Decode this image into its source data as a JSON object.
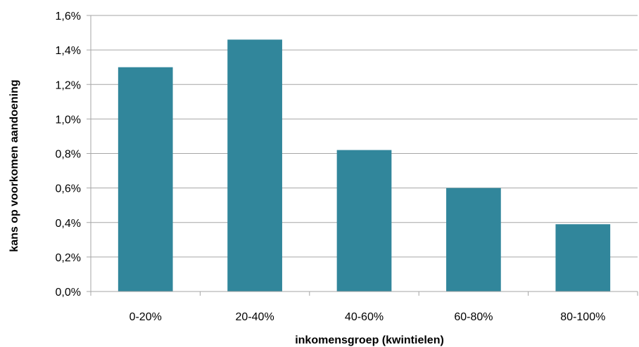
{
  "chart_data": {
    "type": "bar",
    "title": "",
    "xlabel": "inkomensgroep (kwintielen)",
    "ylabel": "kans op voorkomen aandoening",
    "categories": [
      "0-20%",
      "20-40%",
      "40-60%",
      "60-80%",
      "80-100%"
    ],
    "values": [
      1.3,
      1.46,
      0.82,
      0.6,
      0.39
    ],
    "unit": "%",
    "ylim": [
      0,
      1.6
    ],
    "yticks": [
      0.0,
      0.2,
      0.4,
      0.6,
      0.8,
      1.0,
      1.2,
      1.4,
      1.6
    ],
    "ytick_labels": [
      "0,0%",
      "0,2%",
      "0,4%",
      "0,6%",
      "0,8%",
      "1,0%",
      "1,2%",
      "1,4%",
      "1,6%"
    ],
    "grid": true,
    "legend": "none",
    "bar_color": "#31869b",
    "grid_color": "#a6a6a6"
  }
}
